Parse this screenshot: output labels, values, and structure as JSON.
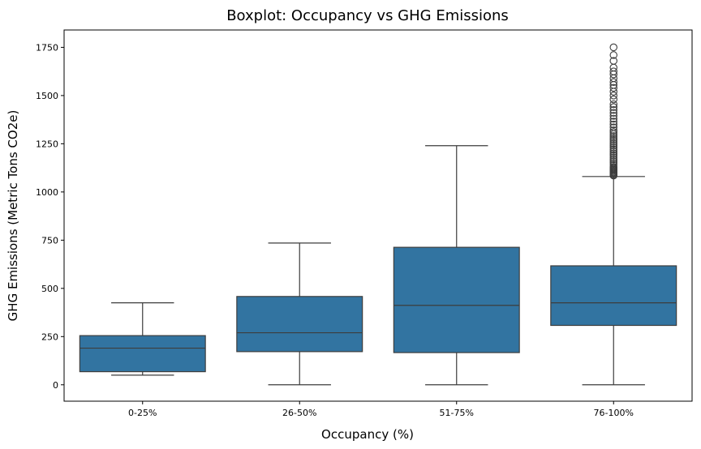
{
  "chart_data": {
    "type": "boxplot",
    "title": "Boxplot: Occupancy vs GHG Emissions",
    "xlabel": "Occupancy (%)",
    "ylabel": "GHG Emissions (Metric Tons CO2e)",
    "ylim": [
      -85,
      1840
    ],
    "yticks": [
      0,
      250,
      500,
      750,
      1000,
      1250,
      1500,
      1750
    ],
    "categories": [
      "0-25%",
      "26-50%",
      "51-75%",
      "76-100%"
    ],
    "box_color": "#3274a1",
    "line_color": "#3d3d3d",
    "grid": false,
    "boxes": [
      {
        "category": "0-25%",
        "whisker_low": 50,
        "q1": 68,
        "median": 190,
        "q3": 255,
        "whisker_high": 425,
        "outliers": []
      },
      {
        "category": "26-50%",
        "whisker_low": 0,
        "q1": 172,
        "median": 270,
        "q3": 458,
        "whisker_high": 735,
        "outliers": []
      },
      {
        "category": "51-75%",
        "whisker_low": 0,
        "q1": 167,
        "median": 412,
        "q3": 713,
        "whisker_high": 1240,
        "outliers": []
      },
      {
        "category": "76-100%",
        "whisker_low": 0,
        "q1": 308,
        "median": 425,
        "q3": 617,
        "whisker_high": 1080,
        "outliers": [
          1085,
          1090,
          1095,
          1100,
          1105,
          1110,
          1115,
          1120,
          1125,
          1130,
          1140,
          1150,
          1160,
          1170,
          1180,
          1190,
          1200,
          1210,
          1220,
          1230,
          1240,
          1250,
          1260,
          1270,
          1280,
          1290,
          1300,
          1310,
          1320,
          1335,
          1350,
          1365,
          1380,
          1395,
          1410,
          1425,
          1440,
          1455,
          1480,
          1500,
          1520,
          1540,
          1555,
          1570,
          1590,
          1610,
          1625,
          1645,
          1680,
          1710,
          1750
        ]
      }
    ]
  }
}
